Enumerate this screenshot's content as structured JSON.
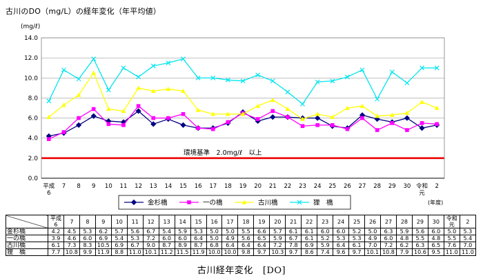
{
  "page_title": "古川のDO（mg/L）の経年変化（年平均値）",
  "caption_main": "古川経年変化",
  "caption_tag": "[DO]",
  "chart_data": {
    "type": "line",
    "ylabel": "(mg/ℓ)",
    "xlabel": "(年度)",
    "ylim": [
      0,
      14
    ],
    "yticks": [
      "0.0",
      "2.0",
      "4.0",
      "6.0",
      "8.0",
      "10.0",
      "12.0",
      "14.0"
    ],
    "categories": [
      "平成6",
      "7",
      "8",
      "9",
      "10",
      "11",
      "12",
      "13",
      "14",
      "15",
      "16",
      "17",
      "18",
      "19",
      "20",
      "21",
      "22",
      "23",
      "24",
      "25",
      "26",
      "27",
      "28",
      "29",
      "30",
      "令和元",
      "2"
    ],
    "category_labels": [
      "平成\n6",
      "7",
      "8",
      "9",
      "10",
      "11",
      "12",
      "13",
      "14",
      "15",
      "16",
      "17",
      "18",
      "19",
      "20",
      "21",
      "22",
      "23",
      "24",
      "25",
      "26",
      "27",
      "28",
      "29",
      "30",
      "令和\n元",
      "2"
    ],
    "reference_line": {
      "value": 2.0,
      "label": "環境基準　2.0mg/ℓ　以上",
      "color": "#ee0000"
    },
    "grid": true,
    "legend_position": "bottom",
    "series": [
      {
        "name": "金杉橋",
        "color": "#000080",
        "marker": "diamond",
        "values": [
          4.2,
          4.5,
          5.3,
          6.2,
          5.7,
          5.6,
          6.7,
          5.4,
          5.9,
          5.3,
          5.0,
          5.0,
          5.5,
          6.6,
          5.7,
          6.1,
          6.1,
          6.0,
          6.0,
          5.2,
          5.0,
          6.3,
          5.9,
          5.6,
          6.0,
          5.0,
          5.3
        ]
      },
      {
        "name": "一の橋",
        "color": "#ff00ff",
        "marker": "square",
        "values": [
          3.9,
          4.6,
          6.0,
          6.9,
          5.4,
          5.3,
          7.2,
          6.0,
          6.0,
          6.4,
          5.0,
          4.9,
          5.6,
          6.5,
          5.9,
          6.7,
          6.1,
          5.2,
          5.3,
          5.3,
          4.9,
          6.0,
          4.8,
          5.5,
          4.8,
          5.5,
          5.4
        ]
      },
      {
        "name": "古川橋",
        "color": "#ffff00",
        "marker": "triangle",
        "values": [
          6.1,
          7.3,
          8.3,
          10.5,
          6.9,
          6.7,
          9.0,
          8.7,
          8.9,
          8.7,
          6.8,
          6.4,
          6.4,
          6.4,
          7.2,
          7.8,
          6.9,
          5.9,
          6.4,
          6.1,
          7.0,
          7.2,
          6.2,
          6.3,
          6.5,
          7.6,
          7.0
        ]
      },
      {
        "name": "狸　橋",
        "color": "#00e5ee",
        "marker": "x",
        "values": [
          7.7,
          10.8,
          9.9,
          11.9,
          8.8,
          11.0,
          10.1,
          11.2,
          11.5,
          11.9,
          10.0,
          10.0,
          9.8,
          9.7,
          10.3,
          9.7,
          8.6,
          7.4,
          9.6,
          9.7,
          10.1,
          10.8,
          7.9,
          10.6,
          9.5,
          11.0,
          11.0
        ]
      }
    ]
  },
  "table": {
    "headers": [
      "平成\n6",
      "7",
      "8",
      "9",
      "10",
      "11",
      "12",
      "13",
      "14",
      "15",
      "16",
      "17",
      "18",
      "19",
      "20",
      "21",
      "22",
      "23",
      "24",
      "25",
      "26",
      "27",
      "28",
      "29",
      "30",
      "令和\n元",
      "2"
    ],
    "rows": [
      {
        "label": "金杉橋",
        "values": [
          "4.2",
          "4.5",
          "5.3",
          "6.2",
          "5.7",
          "5.6",
          "6.7",
          "5.4",
          "5.9",
          "5.3",
          "5.0",
          "5.0",
          "5.5",
          "6.6",
          "5.7",
          "6.1",
          "6.1",
          "6.0",
          "6.0",
          "5.2",
          "5.0",
          "6.3",
          "5.9",
          "5.6",
          "6.0",
          "5.0",
          "5.3"
        ]
      },
      {
        "label": "一の橋",
        "values": [
          "3.9",
          "4.6",
          "6.0",
          "6.9",
          "5.4",
          "5.3",
          "7.2",
          "6.0",
          "6.0",
          "6.4",
          "5.0",
          "4.9",
          "5.6",
          "6.5",
          "5.9",
          "6.7",
          "6.1",
          "5.2",
          "5.3",
          "5.3",
          "4.9",
          "6.0",
          "4.8",
          "5.5",
          "4.8",
          "5.5",
          "5.4"
        ]
      },
      {
        "label": "古川橋",
        "values": [
          "6.1",
          "7.3",
          "8.3",
          "10.5",
          "6.9",
          "6.7",
          "9.0",
          "8.7",
          "8.9",
          "8.7",
          "6.8",
          "6.4",
          "6.4",
          "6.4",
          "7.2",
          "7.8",
          "6.9",
          "5.9",
          "6.4",
          "6.1",
          "7.0",
          "7.2",
          "6.2",
          "6.3",
          "6.5",
          "7.6",
          "7.0"
        ]
      },
      {
        "label": "狸　橋",
        "values": [
          "7.7",
          "10.8",
          "9.9",
          "11.9",
          "8.8",
          "11.0",
          "10.1",
          "11.2",
          "11.5",
          "11.9",
          "10.0",
          "10.0",
          "9.8",
          "9.7",
          "10.3",
          "9.7",
          "8.6",
          "7.4",
          "9.6",
          "9.7",
          "10.1",
          "10.8",
          "7.9",
          "10.6",
          "9.5",
          "11.0",
          "11.0"
        ]
      }
    ]
  }
}
